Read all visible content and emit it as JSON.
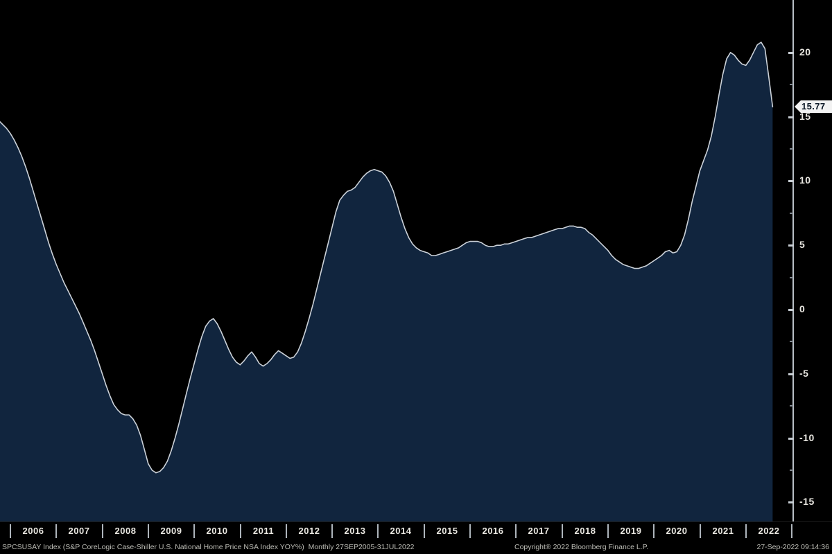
{
  "window": {
    "title": "Bloomberg chart - SPCSUSAY Index",
    "bg": "#000000"
  },
  "chart_data": {
    "type": "area",
    "title": "S&P CoreLogic Case-Shiller U.S. National Home Price NSA Index YOY%",
    "series": [
      {
        "name": "SPCSUSAY Index",
        "start": "2005-09",
        "frequency": "monthly"
      }
    ],
    "x_start": "2005-09",
    "x_end": "2022-07",
    "x_tick_years": [
      "2006",
      "2007",
      "2008",
      "2009",
      "2010",
      "2011",
      "2012",
      "2013",
      "2014",
      "2015",
      "2016",
      "2017",
      "2018",
      "2019",
      "2020",
      "2021",
      "2022"
    ],
    "y_major_ticks": [
      20,
      15,
      10,
      5,
      0,
      -5,
      -10,
      -15
    ],
    "y_major_labels": [
      "20",
      "15",
      "10",
      "5",
      "0",
      "-5",
      "-10",
      "-15"
    ],
    "y_minor_ticks": [
      17.5,
      12.5,
      7.5,
      2.5,
      -2.5,
      -7.5,
      -12.5
    ],
    "ylim": [
      -16.5,
      24.1
    ],
    "legend_position": "none",
    "grid": false,
    "last_value": 15.77,
    "last_value_label": "15.77",
    "values": [
      14.7,
      14.4,
      14.1,
      13.7,
      13.2,
      12.6,
      11.9,
      11.1,
      10.2,
      9.2,
      8.2,
      7.2,
      6.2,
      5.2,
      4.3,
      3.5,
      2.8,
      2.1,
      1.5,
      0.9,
      0.3,
      -0.3,
      -1.0,
      -1.7,
      -2.4,
      -3.2,
      -4.1,
      -5.0,
      -5.9,
      -6.7,
      -7.4,
      -7.8,
      -8.1,
      -8.2,
      -8.2,
      -8.5,
      -9.0,
      -9.8,
      -10.9,
      -12.0,
      -12.5,
      -12.7,
      -12.6,
      -12.3,
      -11.8,
      -11.0,
      -10.0,
      -8.9,
      -7.7,
      -6.5,
      -5.3,
      -4.2,
      -3.1,
      -2.1,
      -1.3,
      -0.9,
      -0.7,
      -1.1,
      -1.7,
      -2.4,
      -3.1,
      -3.7,
      -4.1,
      -4.3,
      -4.0,
      -3.6,
      -3.3,
      -3.7,
      -4.2,
      -4.4,
      -4.2,
      -3.9,
      -3.5,
      -3.2,
      -3.4,
      -3.6,
      -3.8,
      -3.7,
      -3.3,
      -2.6,
      -1.7,
      -0.7,
      0.4,
      1.6,
      2.8,
      4.0,
      5.2,
      6.4,
      7.6,
      8.5,
      8.9,
      9.2,
      9.3,
      9.5,
      9.9,
      10.3,
      10.6,
      10.8,
      10.9,
      10.8,
      10.7,
      10.4,
      9.9,
      9.2,
      8.2,
      7.2,
      6.3,
      5.6,
      5.1,
      4.8,
      4.6,
      4.5,
      4.4,
      4.2,
      4.2,
      4.3,
      4.4,
      4.5,
      4.6,
      4.7,
      4.8,
      5.0,
      5.2,
      5.3,
      5.3,
      5.3,
      5.2,
      5.0,
      4.9,
      4.9,
      5.0,
      5.0,
      5.1,
      5.1,
      5.2,
      5.3,
      5.4,
      5.5,
      5.6,
      5.6,
      5.7,
      5.8,
      5.9,
      6.0,
      6.1,
      6.2,
      6.3,
      6.3,
      6.4,
      6.5,
      6.5,
      6.4,
      6.4,
      6.3,
      6.0,
      5.8,
      5.5,
      5.2,
      4.9,
      4.6,
      4.2,
      3.9,
      3.7,
      3.5,
      3.4,
      3.3,
      3.2,
      3.2,
      3.3,
      3.4,
      3.6,
      3.8,
      4.0,
      4.2,
      4.5,
      4.6,
      4.4,
      4.5,
      5.0,
      5.8,
      7.0,
      8.4,
      9.6,
      10.8,
      11.6,
      12.4,
      13.5,
      15.0,
      16.7,
      18.3,
      19.5,
      20.0,
      19.8,
      19.4,
      19.1,
      19.0,
      19.4,
      20.0,
      20.6,
      20.8,
      20.3,
      18.1,
      15.77
    ],
    "colors": {
      "background": "#000000",
      "area_fill": "#11253e",
      "line": "#ccd2d9",
      "axis": "#b9c0c7",
      "tick_label": "#e9e7e1",
      "callout_bg": "#f2f2f2",
      "callout_text": "#0a1624"
    }
  },
  "footer": {
    "left": "SPCSUSAY Index (S&P CoreLogic Case-Shiller U.S. National Home Price NSA Index YOY%)  Monthly 27SEP2005-31JUL2022",
    "center": "Copyright® 2022 Bloomberg Finance L.P.",
    "right": "27-Sep-2022 09:14:36"
  }
}
